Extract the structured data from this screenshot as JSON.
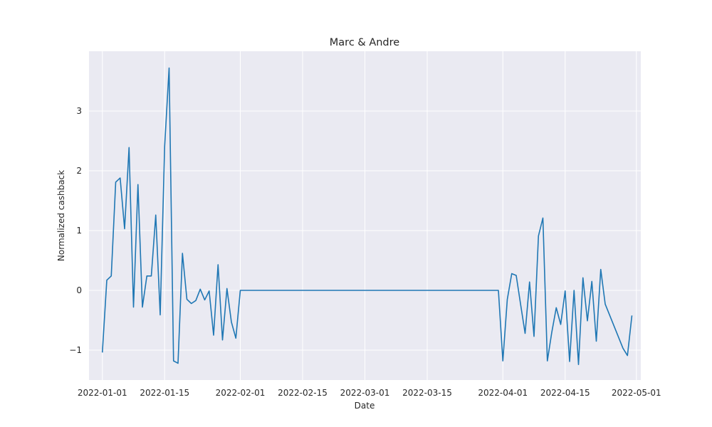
{
  "chart_data": {
    "type": "line",
    "title": "Marc & Andre",
    "xlabel": "Date",
    "ylabel": "Normalized cashback",
    "grid": true,
    "x_ticks": [
      "2022-01-01",
      "2022-01-15",
      "2022-02-01",
      "2022-02-15",
      "2022-03-01",
      "2022-03-15",
      "2022-04-01",
      "2022-04-15",
      "2022-05-01"
    ],
    "y_ticks": [
      -1,
      0,
      1,
      2,
      3
    ],
    "y_tick_labels": [
      "−1",
      "0",
      "1",
      "2",
      "3"
    ],
    "xlim": [
      "2021-12-29",
      "2022-05-02"
    ],
    "ylim": [
      -1.5,
      4.0
    ],
    "colors": {
      "line": "#1f77b4",
      "plot_bg": "#eaeaf2",
      "grid": "#ffffff"
    },
    "series": [
      {
        "x": [
          "2022-01-01",
          "2022-01-02",
          "2022-01-03",
          "2022-01-04",
          "2022-01-05",
          "2022-01-06",
          "2022-01-07",
          "2022-01-08",
          "2022-01-09",
          "2022-01-10",
          "2022-01-11",
          "2022-01-12",
          "2022-01-13",
          "2022-01-14",
          "2022-01-15",
          "2022-01-16",
          "2022-01-17",
          "2022-01-18",
          "2022-01-19",
          "2022-01-20",
          "2022-01-21",
          "2022-01-22",
          "2022-01-23",
          "2022-01-24",
          "2022-01-25",
          "2022-01-26",
          "2022-01-27",
          "2022-01-28",
          "2022-01-29",
          "2022-01-30",
          "2022-01-31",
          "2022-02-01",
          "2022-03-31",
          "2022-04-01",
          "2022-04-02",
          "2022-04-03",
          "2022-04-04",
          "2022-04-05",
          "2022-04-06",
          "2022-04-07",
          "2022-04-08",
          "2022-04-09",
          "2022-04-10",
          "2022-04-11",
          "2022-04-12",
          "2022-04-13",
          "2022-04-14",
          "2022-04-15",
          "2022-04-16",
          "2022-04-17",
          "2022-04-18",
          "2022-04-19",
          "2022-04-20",
          "2022-04-21",
          "2022-04-22",
          "2022-04-23",
          "2022-04-24",
          "2022-04-28",
          "2022-04-29",
          "2022-04-30"
        ],
        "y": [
          -1.04,
          0.17,
          0.24,
          1.81,
          1.88,
          1.03,
          2.39,
          -0.28,
          1.77,
          -0.28,
          0.24,
          0.24,
          1.26,
          -0.41,
          2.41,
          3.72,
          -1.18,
          -1.22,
          0.62,
          -0.15,
          -0.22,
          -0.17,
          0.02,
          -0.16,
          -0.01,
          -0.75,
          0.43,
          -0.83,
          0.03,
          -0.53,
          -0.8,
          0.0,
          0.0,
          -1.18,
          -0.15,
          0.28,
          0.25,
          -0.24,
          -0.72,
          0.14,
          -0.77,
          0.91,
          1.21,
          -1.18,
          -0.7,
          -0.29,
          -0.57,
          -0.01,
          -1.19,
          0.0,
          -1.24,
          0.21,
          -0.51,
          0.15,
          -0.85,
          0.35,
          -0.23,
          -0.97,
          -1.09,
          -0.42
        ]
      }
    ]
  }
}
